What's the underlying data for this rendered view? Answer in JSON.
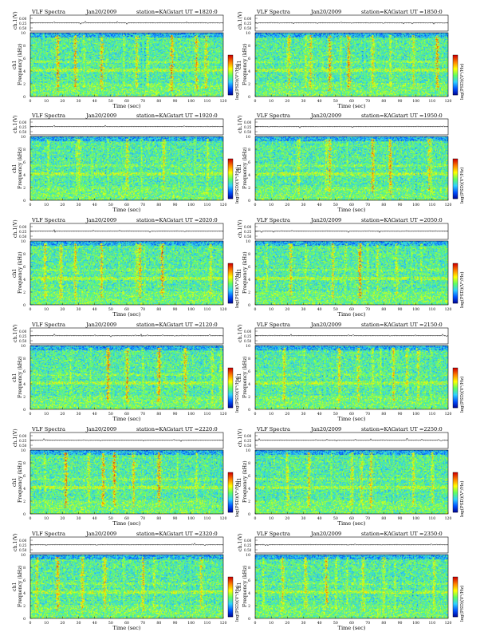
{
  "figure": {
    "panel_common": {
      "instrument": "VLF Spectra",
      "date": "Jan20/2009",
      "station": "station=KAG",
      "start_prefix": "start  UT  =",
      "ch_label": "ch.1(V)",
      "ylabel": "Frequency  (kHz)",
      "ylabel_ch": "ch1",
      "xlabel": "Time  (sec)",
      "cbar_label": "log(PSD)(V²/Hz)",
      "strip_ticks": [
        "0.00",
        "0.25",
        "0.50"
      ],
      "freq_ticks": [
        "0",
        "2",
        "4",
        "6",
        "8",
        "10"
      ],
      "time_ticks": [
        "0",
        "10",
        "20",
        "30",
        "40",
        "50",
        "60",
        "70",
        "80",
        "90",
        "100",
        "110",
        "120"
      ]
    },
    "panels": [
      {
        "start": "1820:0",
        "burst_times": [
          8,
          17,
          28,
          33,
          44,
          58,
          66,
          70,
          73,
          88,
          103,
          109
        ]
      },
      {
        "start": "1850:0",
        "burst_times": [
          21,
          31,
          34,
          46,
          53,
          58,
          68,
          73,
          84,
          98,
          113
        ]
      },
      {
        "start": "1920:0",
        "burst_times": [
          11,
          24,
          29,
          30,
          38,
          48,
          60,
          69,
          83,
          92,
          102,
          110
        ]
      },
      {
        "start": "1950:0",
        "burst_times": [
          13,
          27,
          44,
          46,
          57,
          73,
          84,
          101,
          108,
          109
        ]
      },
      {
        "start": "2020:0",
        "burst_times": [
          9,
          19,
          28,
          44,
          55,
          66,
          68,
          71,
          82,
          98,
          112
        ]
      },
      {
        "start": "2050:0",
        "burst_times": [
          7,
          22,
          31,
          48,
          56,
          65,
          70,
          76,
          88,
          97,
          103
        ]
      },
      {
        "start": "2120:0",
        "burst_times": [
          10,
          25,
          37,
          48,
          60,
          70,
          80,
          96,
          113,
          118
        ]
      },
      {
        "start": "2150:0",
        "burst_times": [
          18,
          30,
          43,
          52,
          64,
          73,
          78,
          86,
          94,
          101,
          109
        ]
      },
      {
        "start": "2220:0",
        "burst_times": [
          9,
          22,
          36,
          45,
          52,
          64,
          80,
          91,
          103,
          117
        ]
      },
      {
        "start": "2250:0",
        "burst_times": [
          7,
          20,
          33,
          47,
          60,
          66,
          72,
          86,
          98,
          110
        ]
      },
      {
        "start": "2320:0",
        "burst_times": [
          4,
          17,
          32,
          46,
          58,
          70,
          77,
          86,
          99,
          106
        ]
      },
      {
        "start": "2350:0",
        "burst_times": [
          5,
          17,
          31,
          44,
          50,
          57,
          67,
          80,
          87,
          99,
          111
        ]
      }
    ]
  },
  "chart_data": {
    "type": "heatmap",
    "title": "VLF Spectra",
    "xlabel": "Time  (sec)",
    "ylabel": "Frequency  (kHz)",
    "xlim": [
      0,
      120
    ],
    "ylim": [
      0,
      10
    ],
    "colorbar_label": "log(PSD)(V²/Hz)",
    "colormap": [
      "#00008f",
      "#0050ff",
      "#2fd0ff",
      "#60ff60",
      "#ffff00",
      "#ff8000",
      "#d00000"
    ],
    "grid": false
  }
}
